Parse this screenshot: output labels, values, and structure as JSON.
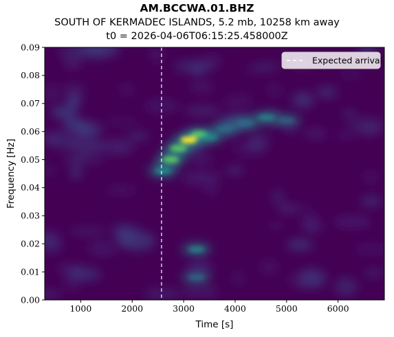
{
  "chart_data": {
    "type": "heatmap",
    "title": "AM.BCCWA.01.BHZ",
    "subtitle": "SOUTH OF KERMADEC ISLANDS, 5.2 mb, 10258 km away",
    "subtitle2": "t0 = 2026-04-06T06:15:25.458000Z",
    "xlabel": "Time [s]",
    "ylabel": "Frequency [Hz]",
    "xlim": [
      300,
      6900
    ],
    "ylim": [
      0.0,
      0.09
    ],
    "xticks": [
      1000,
      2000,
      3000,
      4000,
      5000,
      6000
    ],
    "xtick_labels": [
      "1000",
      "2000",
      "3000",
      "4000",
      "5000",
      "6000"
    ],
    "yticks": [
      0.0,
      0.01,
      0.02,
      0.03,
      0.04,
      0.05,
      0.06,
      0.07,
      0.08,
      0.09
    ],
    "ytick_labels": [
      "0.00",
      "0.01",
      "0.02",
      "0.03",
      "0.04",
      "0.05",
      "0.06",
      "0.07",
      "0.08",
      "0.09"
    ],
    "colormap": "viridis",
    "expected_arrival": 2570,
    "legend": {
      "label": "Expected arrival",
      "position": "top-right"
    },
    "features": [
      {
        "t": 2600,
        "f": 0.046,
        "power": 0.6
      },
      {
        "t": 2750,
        "f": 0.05,
        "power": 0.85
      },
      {
        "t": 2900,
        "f": 0.054,
        "power": 0.9
      },
      {
        "t": 3100,
        "f": 0.057,
        "power": 1.0
      },
      {
        "t": 3300,
        "f": 0.059,
        "power": 0.85
      },
      {
        "t": 3500,
        "f": 0.058,
        "power": 0.5
      },
      {
        "t": 3800,
        "f": 0.061,
        "power": 0.35
      },
      {
        "t": 4200,
        "f": 0.063,
        "power": 0.35
      },
      {
        "t": 4600,
        "f": 0.065,
        "power": 0.4
      },
      {
        "t": 5000,
        "f": 0.064,
        "power": 0.2
      },
      {
        "t": 3250,
        "f": 0.018,
        "power": 0.4
      },
      {
        "t": 3250,
        "f": 0.008,
        "power": 0.3
      }
    ]
  },
  "colors": {
    "background": "#440154",
    "low": "#472c7a",
    "mid": "#21918c",
    "high": "#5ec962",
    "peak": "#fde725",
    "arrival_line": "#ffffff"
  }
}
